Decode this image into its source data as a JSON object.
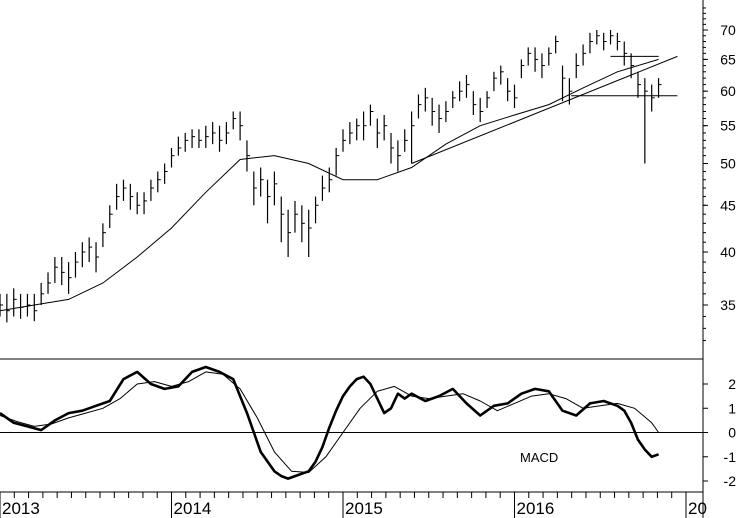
{
  "chart_data": [
    {
      "type": "ohlc",
      "panel": "price",
      "scale": "log",
      "ylim": [
        31,
        75
      ],
      "y_ticks": [
        35,
        40,
        45,
        50,
        55,
        60,
        65,
        70
      ],
      "x_ticks": [
        "2013",
        "2014",
        "2015",
        "2016",
        "20"
      ],
      "x_tick_dates": [
        2013.0,
        2014.0,
        2015.0,
        2016.0,
        2017.0
      ],
      "x_range": [
        2013.0,
        2016.95
      ],
      "series": [
        {
          "kind": "weekly-price",
          "x": [
            2013.0,
            2013.04,
            2013.08,
            2013.12,
            2013.16,
            2013.2,
            2013.24,
            2013.28,
            2013.32,
            2013.36,
            2013.4,
            2013.44,
            2013.48,
            2013.52,
            2013.56,
            2013.6,
            2013.64,
            2013.68,
            2013.72,
            2013.76,
            2013.8,
            2013.84,
            2013.88,
            2013.92,
            2013.96,
            2014.0,
            2014.04,
            2014.08,
            2014.12,
            2014.16,
            2014.2,
            2014.24,
            2014.28,
            2014.32,
            2014.36,
            2014.4,
            2014.44,
            2014.48,
            2014.52,
            2014.56,
            2014.6,
            2014.64,
            2014.68,
            2014.72,
            2014.76,
            2014.8,
            2014.84,
            2014.88,
            2014.92,
            2014.96,
            2015.0,
            2015.04,
            2015.08,
            2015.12,
            2015.16,
            2015.2,
            2015.24,
            2015.28,
            2015.32,
            2015.36,
            2015.4,
            2015.44,
            2015.48,
            2015.52,
            2015.56,
            2015.6,
            2015.64,
            2015.68,
            2015.72,
            2015.76,
            2015.8,
            2015.84,
            2015.88,
            2015.92,
            2015.96,
            2016.0,
            2016.04,
            2016.08,
            2016.12,
            2016.16,
            2016.2,
            2016.24,
            2016.28,
            2016.32,
            2016.36,
            2016.4,
            2016.44,
            2016.48,
            2016.52,
            2016.56,
            2016.6,
            2016.64,
            2016.68,
            2016.72,
            2016.76,
            2016.8,
            2016.84
          ],
          "close": [
            35,
            34.5,
            35.5,
            34.8,
            35,
            34.5,
            36,
            37,
            38.5,
            38,
            37.5,
            39,
            40,
            40.5,
            39.5,
            42,
            44,
            46,
            47,
            46,
            45,
            45.5,
            47,
            48,
            49,
            51,
            52,
            53,
            53.5,
            53,
            53.5,
            54,
            53,
            54,
            56,
            55,
            51,
            47,
            48,
            46,
            47.5,
            44,
            42,
            44,
            43,
            42.5,
            45,
            47,
            48,
            51,
            53,
            54,
            55,
            55,
            57,
            54,
            55,
            52,
            51,
            53,
            55,
            58,
            59,
            57,
            56,
            57,
            59,
            60,
            61,
            58,
            57,
            59,
            62,
            63,
            60,
            59,
            64,
            66,
            65,
            64,
            66,
            68,
            62,
            60,
            64,
            66,
            68,
            69,
            68,
            69,
            68,
            66,
            64,
            61,
            60,
            59,
            61
          ],
          "high": [
            36,
            36,
            36.5,
            36,
            36,
            36,
            37,
            38,
            39.5,
            39.5,
            39,
            40,
            41,
            41.5,
            41,
            43,
            45,
            47.5,
            48,
            47.5,
            46.5,
            46.5,
            48,
            49,
            50,
            52,
            53.5,
            54,
            54.5,
            54.5,
            55,
            55.5,
            55,
            55.5,
            57,
            57,
            53,
            49,
            49.5,
            48,
            49,
            46,
            44.5,
            45.5,
            45,
            44.5,
            46,
            48.5,
            49.5,
            52,
            54.5,
            55.5,
            56,
            57,
            58,
            56,
            56.5,
            54,
            53,
            54.5,
            57,
            59.5,
            60.5,
            59,
            58,
            58.5,
            60,
            61.5,
            62.5,
            60,
            59,
            60,
            63,
            64,
            62,
            61,
            65,
            67,
            67,
            66,
            67,
            69,
            64,
            62,
            66,
            67.5,
            69.5,
            70,
            69.5,
            70,
            69.5,
            68,
            66,
            63,
            62,
            61,
            62
          ],
          "low": [
            34,
            33.5,
            34,
            33.8,
            34,
            33.6,
            35,
            36,
            37,
            36.8,
            36,
            37.5,
            38.5,
            39,
            38,
            40.5,
            42.5,
            44.5,
            45.5,
            44.5,
            44,
            44,
            45.5,
            46.5,
            47.5,
            49.5,
            51,
            51.5,
            52,
            52,
            52,
            52.5,
            51.5,
            52.5,
            54.5,
            53,
            49,
            45,
            46,
            43,
            45,
            41,
            39.5,
            42,
            41,
            39.5,
            43,
            45.5,
            46.5,
            48.5,
            51.5,
            52.5,
            53,
            53,
            55,
            52,
            53,
            50,
            49,
            51.5,
            50,
            56,
            57,
            55,
            54,
            55.5,
            57.5,
            58.5,
            59,
            56.5,
            55.5,
            57.5,
            60,
            61,
            58.5,
            57.5,
            62,
            64,
            63,
            62,
            64,
            66,
            58.5,
            58,
            62,
            64,
            66,
            67.5,
            66.5,
            67.5,
            66.5,
            64,
            62,
            59,
            50,
            57,
            59
          ]
        },
        {
          "kind": "moving-average",
          "x": [
            2013.0,
            2013.2,
            2013.4,
            2013.6,
            2013.8,
            2014.0,
            2014.2,
            2014.4,
            2014.6,
            2014.8,
            2015.0,
            2015.2,
            2015.4,
            2015.6,
            2015.8,
            2016.0,
            2016.2,
            2016.4,
            2016.6,
            2016.84
          ],
          "y": [
            34.5,
            35,
            35.5,
            37,
            39.5,
            42.5,
            46.5,
            50.5,
            51,
            50,
            48,
            48,
            49.5,
            52.5,
            55,
            56.5,
            58,
            60.5,
            63,
            65
          ]
        },
        {
          "kind": "trendline",
          "x": [
            2015.4,
            2016.95
          ],
          "y": [
            50,
            65.5
          ]
        },
        {
          "kind": "horizontal-line",
          "x": [
            2016.33,
            2016.95
          ],
          "y": [
            59.3,
            59.3
          ]
        },
        {
          "kind": "horizontal-line",
          "x": [
            2016.56,
            2016.84
          ],
          "y": [
            65.5,
            65.5
          ]
        }
      ]
    },
    {
      "type": "line",
      "panel": "indicator",
      "label": "MACD",
      "ylim": [
        -2.2,
        2.9
      ],
      "y_ticks": [
        -2,
        -1,
        0,
        1,
        2
      ],
      "zero_line": true,
      "series": [
        {
          "kind": "macd",
          "x": [
            2013.0,
            2013.08,
            2013.16,
            2013.24,
            2013.32,
            2013.4,
            2013.48,
            2013.56,
            2013.64,
            2013.72,
            2013.8,
            2013.88,
            2013.96,
            2014.04,
            2014.12,
            2014.2,
            2014.28,
            2014.36,
            2014.44,
            2014.52,
            2014.6,
            2014.64,
            2014.68,
            2014.72,
            2014.76,
            2014.8,
            2014.84,
            2014.88,
            2014.92,
            2014.96,
            2015.0,
            2015.04,
            2015.08,
            2015.12,
            2015.16,
            2015.2,
            2015.24,
            2015.28,
            2015.32,
            2015.36,
            2015.4,
            2015.48,
            2015.56,
            2015.64,
            2015.72,
            2015.8,
            2015.88,
            2015.96,
            2016.04,
            2016.12,
            2016.2,
            2016.28,
            2016.36,
            2016.44,
            2016.52,
            2016.6,
            2016.64,
            2016.68,
            2016.72,
            2016.76,
            2016.8,
            2016.84
          ],
          "y": [
            0.8,
            0.4,
            0.25,
            0.1,
            0.5,
            0.8,
            0.9,
            1.1,
            1.3,
            2.2,
            2.5,
            2.0,
            1.8,
            1.9,
            2.5,
            2.7,
            2.5,
            2.2,
            0.8,
            -0.8,
            -1.6,
            -1.8,
            -1.9,
            -1.8,
            -1.7,
            -1.6,
            -1.2,
            -0.6,
            0.2,
            0.9,
            1.5,
            1.9,
            2.2,
            2.3,
            2.0,
            1.4,
            0.8,
            1.0,
            1.6,
            1.4,
            1.6,
            1.3,
            1.5,
            1.8,
            1.2,
            0.7,
            1.1,
            1.2,
            1.6,
            1.8,
            1.7,
            0.9,
            0.7,
            1.2,
            1.3,
            1.1,
            0.9,
            0.4,
            -0.3,
            -0.7,
            -1.0,
            -0.9
          ]
        },
        {
          "kind": "signal",
          "x": [
            2013.0,
            2013.1,
            2013.2,
            2013.3,
            2013.4,
            2013.5,
            2013.6,
            2013.7,
            2013.8,
            2013.9,
            2014.0,
            2014.1,
            2014.2,
            2014.3,
            2014.4,
            2014.5,
            2014.6,
            2014.7,
            2014.8,
            2014.9,
            2015.0,
            2015.1,
            2015.2,
            2015.3,
            2015.4,
            2015.5,
            2015.6,
            2015.7,
            2015.8,
            2015.9,
            2016.0,
            2016.1,
            2016.2,
            2016.3,
            2016.4,
            2016.5,
            2016.6,
            2016.7,
            2016.8,
            2016.84
          ],
          "y": [
            0.7,
            0.45,
            0.25,
            0.35,
            0.6,
            0.8,
            1.0,
            1.4,
            2.0,
            2.1,
            1.9,
            2.1,
            2.5,
            2.4,
            1.8,
            0.6,
            -0.8,
            -1.6,
            -1.65,
            -1.0,
            0.0,
            1.0,
            1.7,
            1.9,
            1.5,
            1.4,
            1.5,
            1.6,
            1.3,
            0.9,
            1.2,
            1.5,
            1.6,
            1.4,
            1.0,
            1.1,
            1.2,
            1.0,
            0.4,
            0.0
          ]
        }
      ]
    }
  ]
}
